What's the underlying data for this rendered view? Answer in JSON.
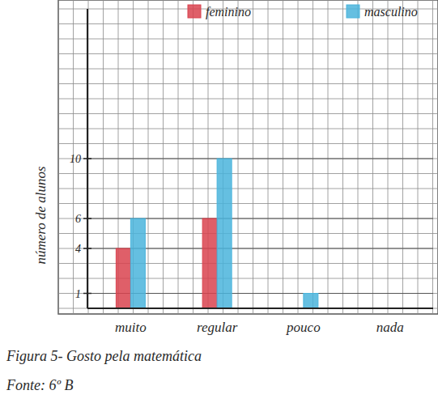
{
  "chart_data": {
    "type": "bar",
    "title": "Figura 5- Gosto pela matemática",
    "subtitle": "Fonte: 6º B",
    "y_label": "número de alunos",
    "categories": [
      "muito",
      "regular",
      "pouco",
      "nada"
    ],
    "series": [
      {
        "name": "feminino",
        "color": "#d9434f",
        "values": [
          4,
          6,
          0,
          0
        ]
      },
      {
        "name": "masculino",
        "color": "#4ab4dc",
        "values": [
          6,
          10,
          1,
          0
        ]
      }
    ],
    "ylim": [
      0,
      20
    ],
    "yticks": [
      1,
      4,
      6,
      10
    ],
    "grid": true,
    "legend": "top"
  }
}
